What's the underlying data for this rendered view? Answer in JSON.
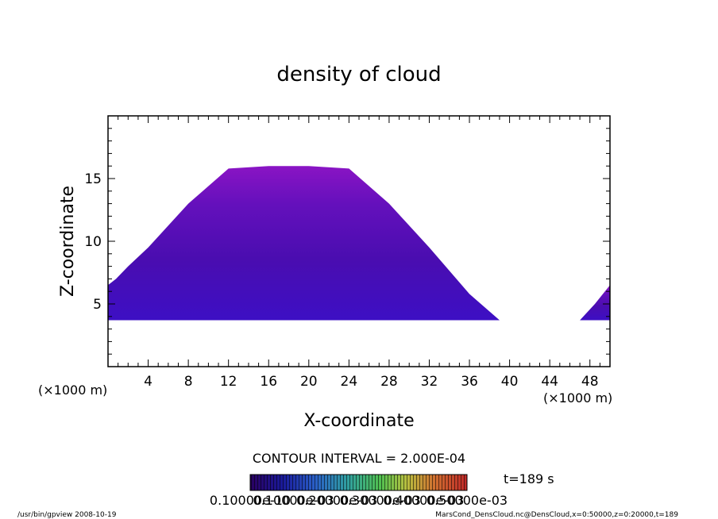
{
  "chart_data": {
    "type": "heatmap",
    "title": "density of cloud",
    "xlabel": "X-coordinate",
    "ylabel": "Z-coordinate",
    "x_unit": "(×1000 m)",
    "y_unit": "(×1000 m)",
    "xlim": [
      0,
      50
    ],
    "ylim": [
      0,
      20
    ],
    "x_ticks": [
      4,
      8,
      12,
      16,
      20,
      24,
      28,
      32,
      36,
      40,
      44,
      48
    ],
    "y_ticks": [
      5,
      10,
      15
    ],
    "contour_interval": "CONTOUR INTERVAL = 2.000E-04",
    "time_label": "t=189 s",
    "colorbar_labels": [
      "0.10000e-10",
      "0.10000e-03",
      "0.20000e-03",
      "0.30000e-03",
      "0.40000e-03",
      "0.50000e-03"
    ],
    "cloud_regions": [
      {
        "name": "main",
        "outline": [
          [
            0,
            6.5
          ],
          [
            0.8,
            7.0
          ],
          [
            2,
            8.0
          ],
          [
            4,
            9.5
          ],
          [
            8,
            13.0
          ],
          [
            12,
            15.8
          ],
          [
            16,
            16.0
          ],
          [
            20,
            16.0
          ],
          [
            24,
            15.8
          ],
          [
            28,
            13.0
          ],
          [
            32,
            9.5
          ],
          [
            36,
            5.8
          ],
          [
            39,
            3.7
          ],
          [
            0,
            3.7
          ]
        ]
      },
      {
        "name": "right-edge",
        "outline": [
          [
            47,
            3.7
          ],
          [
            48.5,
            5.0
          ],
          [
            50,
            6.5
          ],
          [
            50,
            3.7
          ]
        ]
      }
    ],
    "colors": {
      "core": "#3a0aa8",
      "mid": "#5010b8",
      "edge": "#7a12c0",
      "base": "#4a10c8"
    }
  },
  "footer": {
    "left": "/usr/bin/gpview   2008-10-19",
    "right": "MarsCond_DensCloud.nc@DensCloud,x=0:50000,z=0:20000,t=189"
  }
}
